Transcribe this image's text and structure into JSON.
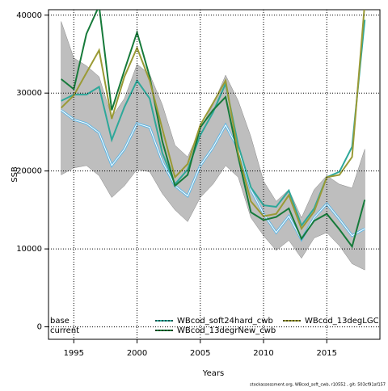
{
  "chart_data": {
    "type": "line",
    "x_label": "Years",
    "y_label": "SSB",
    "footer": "stockassessment.org, WBcod_soft_cwb, r10552 , git: 503cf91af157",
    "x": [
      1994,
      1995,
      1996,
      1997,
      1998,
      1999,
      2000,
      2001,
      2002,
      2003,
      2004,
      2005,
      2006,
      2007,
      2008,
      2009,
      2010,
      2011,
      2012,
      2013,
      2014,
      2015,
      2016,
      2017,
      2018
    ],
    "xlim": [
      1993,
      2019.2
    ],
    "xticks": [
      1995,
      2000,
      2005,
      2010,
      2015
    ],
    "ylim": [
      -1600,
      40700
    ],
    "yticks": [
      0,
      10000,
      20000,
      30000,
      40000
    ],
    "grid": true,
    "legend_labels": [
      "base",
      "current"
    ],
    "series": [
      {
        "name": "base",
        "color": "#5fb7e5",
        "band_color": "#bebebe",
        "values": [
          27800,
          26600,
          26100,
          24900,
          20700,
          22800,
          26100,
          25600,
          21200,
          18100,
          16800,
          20700,
          23000,
          25900,
          22800,
          17600,
          14500,
          12100,
          14200,
          11200,
          14000,
          15800,
          13800,
          11700,
          12600
        ],
        "upper": [
          39200,
          34500,
          33500,
          32100,
          26900,
          29300,
          33700,
          32400,
          28500,
          23300,
          21800,
          25400,
          28500,
          32300,
          29000,
          24400,
          18700,
          16100,
          17600,
          14000,
          17600,
          19400,
          18300,
          17800,
          22800
        ],
        "lower": [
          19500,
          20400,
          20700,
          19400,
          16600,
          18100,
          20200,
          19900,
          17100,
          15000,
          13500,
          16600,
          18300,
          20700,
          19200,
          14000,
          11700,
          9800,
          11100,
          8800,
          11400,
          12100,
          10400,
          8100,
          7300
        ]
      },
      {
        "name": "WBcod_soft24hard_cwb",
        "color": "#2ea89a",
        "values": [
          29000,
          29800,
          29800,
          30800,
          24000,
          28200,
          31600,
          29300,
          22300,
          18300,
          20200,
          24600,
          27500,
          31200,
          23300,
          17900,
          15600,
          15400,
          17500,
          13000,
          15200,
          19200,
          19900,
          23100,
          39400
        ]
      },
      {
        "name": "WBcod_13degrNew_cwb",
        "color": "#167a3a",
        "values": [
          31800,
          30500,
          37600,
          41200,
          27800,
          32900,
          37800,
          32100,
          23800,
          18100,
          19500,
          25600,
          27800,
          29500,
          21800,
          14700,
          13700,
          14100,
          15200,
          11300,
          13600,
          14500,
          12500,
          10300,
          16300
        ]
      },
      {
        "name": "WBcod_13degLGC",
        "color": "#9a9a35",
        "values": [
          28100,
          29700,
          32600,
          35500,
          26700,
          32100,
          35800,
          31600,
          25400,
          19200,
          20900,
          25900,
          28700,
          31600,
          22300,
          16100,
          14200,
          14500,
          16900,
          12600,
          14800,
          19200,
          19500,
          21800,
          41500
        ]
      }
    ]
  }
}
